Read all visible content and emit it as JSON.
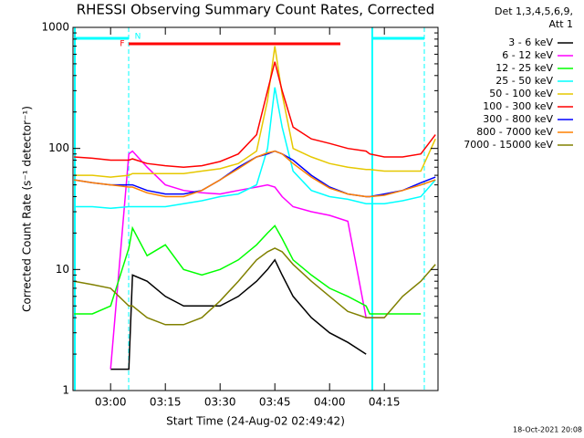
{
  "chart_data": {
    "type": "line",
    "title": "RHESSI Observing Summary Count Rates, Corrected",
    "xlabel": "Start Time (24-Aug-02 02:49:42)",
    "ylabel": "Corrected Count Rate (s⁻¹ detector⁻¹)",
    "footer": "18-Oct-2021 20:08",
    "legend_header": [
      "Det 1,3,4,5,6,9,",
      "Att 1"
    ],
    "annotations": [
      "N",
      "F"
    ],
    "log_y": true,
    "xlim": [
      "02:49:42",
      "04:29:42"
    ],
    "xticks": [
      "03:00",
      "03:15",
      "03:30",
      "03:45",
      "04:00",
      "04:15"
    ],
    "ylim": [
      1,
      1000
    ],
    "yticks": [
      1,
      10,
      100,
      1000
    ],
    "x": [
      "02:50",
      "02:55",
      "03:00",
      "03:05",
      "03:06",
      "03:10",
      "03:15",
      "03:20",
      "03:25",
      "03:30",
      "03:35",
      "03:40",
      "03:43",
      "03:45",
      "03:47",
      "03:50",
      "03:55",
      "04:00",
      "04:05",
      "04:10",
      "04:11",
      "04:15",
      "04:20",
      "04:25",
      "04:29"
    ],
    "series": [
      {
        "name": "3 - 6 keV",
        "color": "#000000",
        "values": [
          null,
          null,
          1.5,
          1.5,
          9,
          8,
          6,
          5,
          5,
          5,
          6,
          8,
          10,
          12,
          9,
          6,
          4,
          3,
          2.5,
          2,
          null,
          null,
          null,
          null,
          null
        ]
      },
      {
        "name": "6 - 12 keV",
        "color": "#ff00ff",
        "values": [
          null,
          null,
          1.5,
          90,
          95,
          70,
          50,
          45,
          43,
          42,
          45,
          48,
          50,
          48,
          40,
          33,
          30,
          28,
          25,
          4,
          4,
          4,
          null,
          null,
          null
        ]
      },
      {
        "name": "12 - 25 keV",
        "color": "#00ff00",
        "values": [
          4.3,
          4.3,
          5,
          15,
          22,
          13,
          16,
          10,
          9,
          10,
          12,
          16,
          20,
          23,
          18,
          12,
          9,
          7,
          6,
          5,
          4.3,
          4.3,
          4.3,
          4.3,
          null
        ]
      },
      {
        "name": "25 - 50 keV",
        "color": "#00ffff",
        "values": [
          33,
          33,
          32,
          33,
          33,
          33,
          33,
          35,
          37,
          40,
          42,
          50,
          100,
          320,
          150,
          65,
          45,
          40,
          38,
          35,
          35,
          35,
          37,
          40,
          55
        ]
      },
      {
        "name": "50 - 100 keV",
        "color": "#e6c800",
        "values": [
          60,
          60,
          58,
          60,
          62,
          62,
          62,
          62,
          65,
          68,
          75,
          95,
          250,
          700,
          280,
          100,
          85,
          75,
          70,
          67,
          67,
          65,
          65,
          65,
          120
        ]
      },
      {
        "name": "100 - 300 keV",
        "color": "#ff0000",
        "values": [
          85,
          83,
          80,
          80,
          82,
          75,
          72,
          70,
          72,
          78,
          90,
          130,
          300,
          520,
          300,
          150,
          120,
          110,
          100,
          95,
          90,
          85,
          85,
          90,
          130
        ]
      },
      {
        "name": "300 - 800 keV",
        "color": "#0000ff",
        "values": [
          55,
          52,
          50,
          50,
          50,
          45,
          42,
          42,
          45,
          55,
          70,
          85,
          90,
          95,
          90,
          80,
          60,
          48,
          42,
          40,
          40,
          42,
          45,
          52,
          58
        ]
      },
      {
        "name": "800 - 7000 keV",
        "color": "#ff8000",
        "values": [
          55,
          52,
          50,
          48,
          48,
          43,
          40,
          40,
          45,
          55,
          68,
          85,
          92,
          95,
          90,
          75,
          58,
          47,
          42,
          40,
          40,
          41,
          45,
          50,
          55
        ]
      },
      {
        "name": "7000 - 15000 keV",
        "color": "#808000",
        "values": [
          8,
          7.5,
          7,
          5,
          5,
          4,
          3.5,
          3.5,
          4,
          5.5,
          8,
          12,
          14,
          15,
          14,
          11,
          8,
          6,
          4.5,
          4,
          4,
          4,
          6,
          8,
          11
        ]
      }
    ]
  }
}
